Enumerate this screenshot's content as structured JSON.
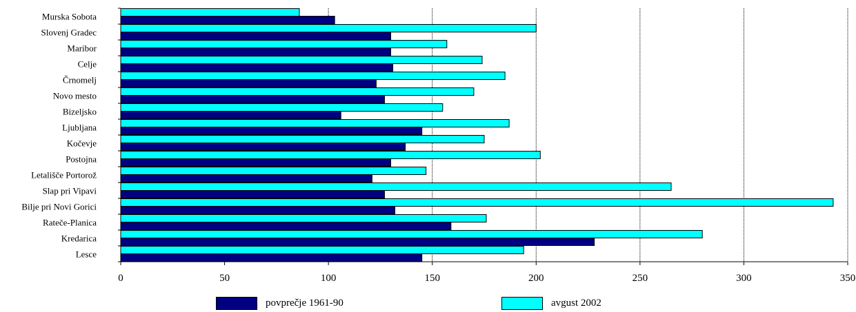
{
  "chart_data": {
    "type": "bar",
    "orientation": "horizontal",
    "categories": [
      "Murska Sobota",
      "Slovenj Gradec",
      "Maribor",
      "Celje",
      "Črnomelj",
      "Novo mesto",
      "Bizeljsko",
      "Ljubljana",
      "Kočevje",
      "Postojna",
      "Letališče Portorož",
      "Slap pri Vipavi",
      "Bilje pri Novi Gorici",
      "Rateče-Planica",
      "Kredarica",
      "Lesce"
    ],
    "series": [
      {
        "name": "povprečje 1961-90",
        "color": "#000080",
        "values": [
          103,
          130,
          130,
          131,
          123,
          127,
          106,
          145,
          137,
          130,
          121,
          127,
          132,
          159,
          228,
          145
        ]
      },
      {
        "name": "avgust 2002",
        "color": "#00FFFF",
        "values": [
          86,
          200,
          157,
          174,
          185,
          170,
          155,
          187,
          175,
          202,
          147,
          265,
          343,
          176,
          280,
          194
        ]
      }
    ],
    "xlim": [
      0,
      350
    ],
    "xticks": [
      "0",
      "50",
      "100",
      "150",
      "200",
      "250",
      "300",
      "350"
    ],
    "grid": "vertical dotted",
    "legend": "bottom"
  }
}
